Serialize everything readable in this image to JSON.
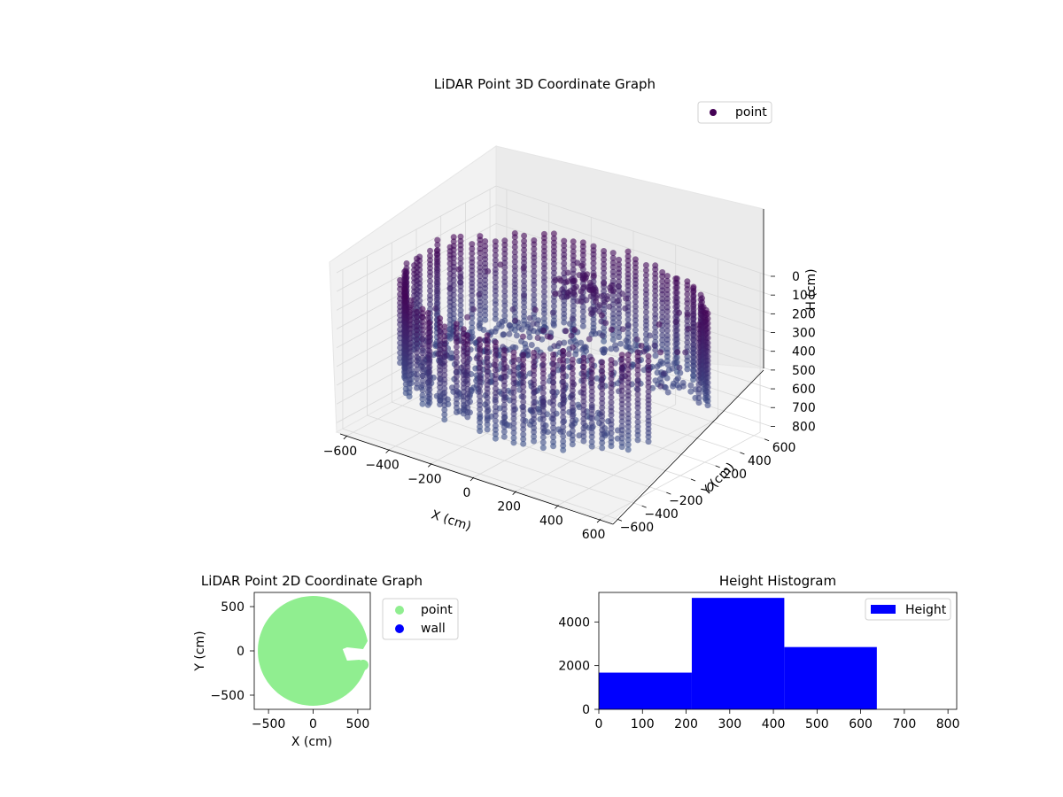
{
  "chart_data": [
    {
      "type": "scatter",
      "projection": "3d",
      "title": "LiDAR Point 3D Coordinate Graph",
      "xlabel": "X (cm)",
      "ylabel": "Y (cm)",
      "zlabel": "H (cm)",
      "xticks": [
        "−600",
        "−400",
        "−200",
        "0",
        "200",
        "400",
        "600"
      ],
      "yticks": [
        "−600",
        "−400",
        "−200",
        "0",
        "200",
        "400",
        "600"
      ],
      "zticks": [
        "0",
        "100",
        "200",
        "300",
        "400",
        "500",
        "600",
        "700",
        "800"
      ],
      "xlim": [
        -650,
        650
      ],
      "ylim": [
        -650,
        650
      ],
      "zlim": [
        0,
        850
      ],
      "z_axis_inverted": true,
      "grid": true,
      "legend": {
        "placement": "top-right",
        "entries": [
          {
            "label": "point",
            "color": "#440154"
          }
        ]
      },
      "colormap": "viridis",
      "series": [
        {
          "name": "point",
          "description_shape": "cylindrical wall of radius ~620 cm with a floor disk; opening toward +X",
          "wall_radius": 620,
          "floor_height": 560,
          "height_range": [
            80,
            640
          ],
          "color_high": "#440154",
          "color_low": "#3b528b"
        }
      ]
    },
    {
      "type": "scatter",
      "title": "LiDAR Point 2D Coordinate Graph",
      "xlabel": "X (cm)",
      "ylabel": "Y (cm)",
      "xticks": [
        "−500",
        "0",
        "500"
      ],
      "yticks": [
        "500",
        "0",
        "−500"
      ],
      "xlim": [
        -660,
        640
      ],
      "ylim": [
        -660,
        660
      ],
      "legend": {
        "placement": "outside-right",
        "entries": [
          {
            "label": "point",
            "color": "#90ee90"
          },
          {
            "label": "wall",
            "color": "#0000ff"
          }
        ]
      },
      "series": [
        {
          "name": "point",
          "color": "#90ee90",
          "shape": "filled disk",
          "radius": 620,
          "notch_toward": "+X"
        },
        {
          "name": "wall",
          "color": "#0000ff"
        }
      ]
    },
    {
      "type": "bar",
      "subtype": "histogram",
      "title": "Height Histogram",
      "xticks": [
        "0",
        "100",
        "200",
        "300",
        "400",
        "500",
        "600",
        "700",
        "800"
      ],
      "yticks": [
        "0",
        "2000",
        "4000"
      ],
      "xlim": [
        0,
        820
      ],
      "ylim": [
        0,
        5350
      ],
      "color": "#0000ff",
      "legend": {
        "placement": "top-right",
        "entries": [
          {
            "label": "Height",
            "color": "#0000ff"
          }
        ]
      },
      "bins": [
        {
          "from": 0,
          "to": 213,
          "count": 1680
        },
        {
          "from": 213,
          "to": 425,
          "count": 5100
        },
        {
          "from": 425,
          "to": 637,
          "count": 2850
        }
      ]
    }
  ]
}
